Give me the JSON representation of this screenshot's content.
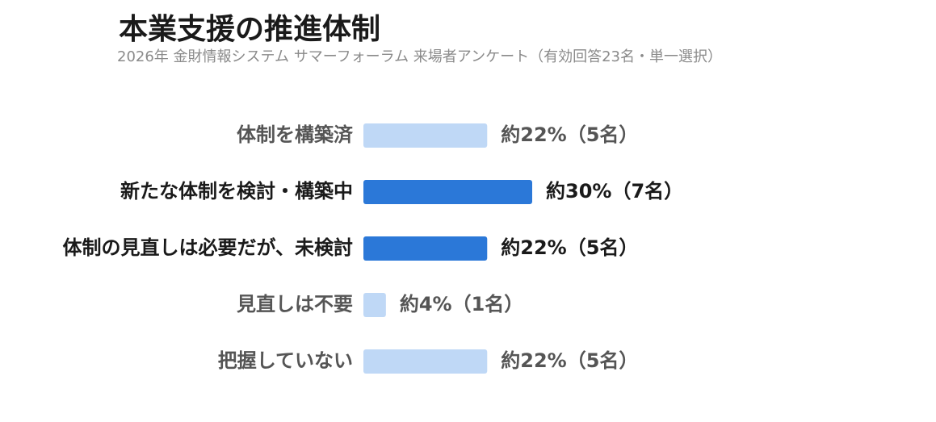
{
  "chart_data": {
    "type": "bar",
    "orientation": "horizontal",
    "title": "本業支援の推進体制",
    "subtitle": "2026年 金財情報システム サマーフォーラム 来場者アンケート（有効回答23名・単一選択）",
    "categories": [
      "体制を構築済",
      "新たな体制を検討・構築中",
      "体制の見直しは必要だが、未検討",
      "見直しは不要",
      "把握していない"
    ],
    "values": [
      22,
      30,
      22,
      4,
      22
    ],
    "value_labels": [
      "約22%（5名）",
      "約30%（7名）",
      "約22%（5名）",
      "約4%（1名）",
      "約22%（5名）"
    ],
    "colors": [
      "#bfd8f6",
      "#2b78d8",
      "#2b78d8",
      "#bfd8f6",
      "#bfd8f6"
    ]
  }
}
